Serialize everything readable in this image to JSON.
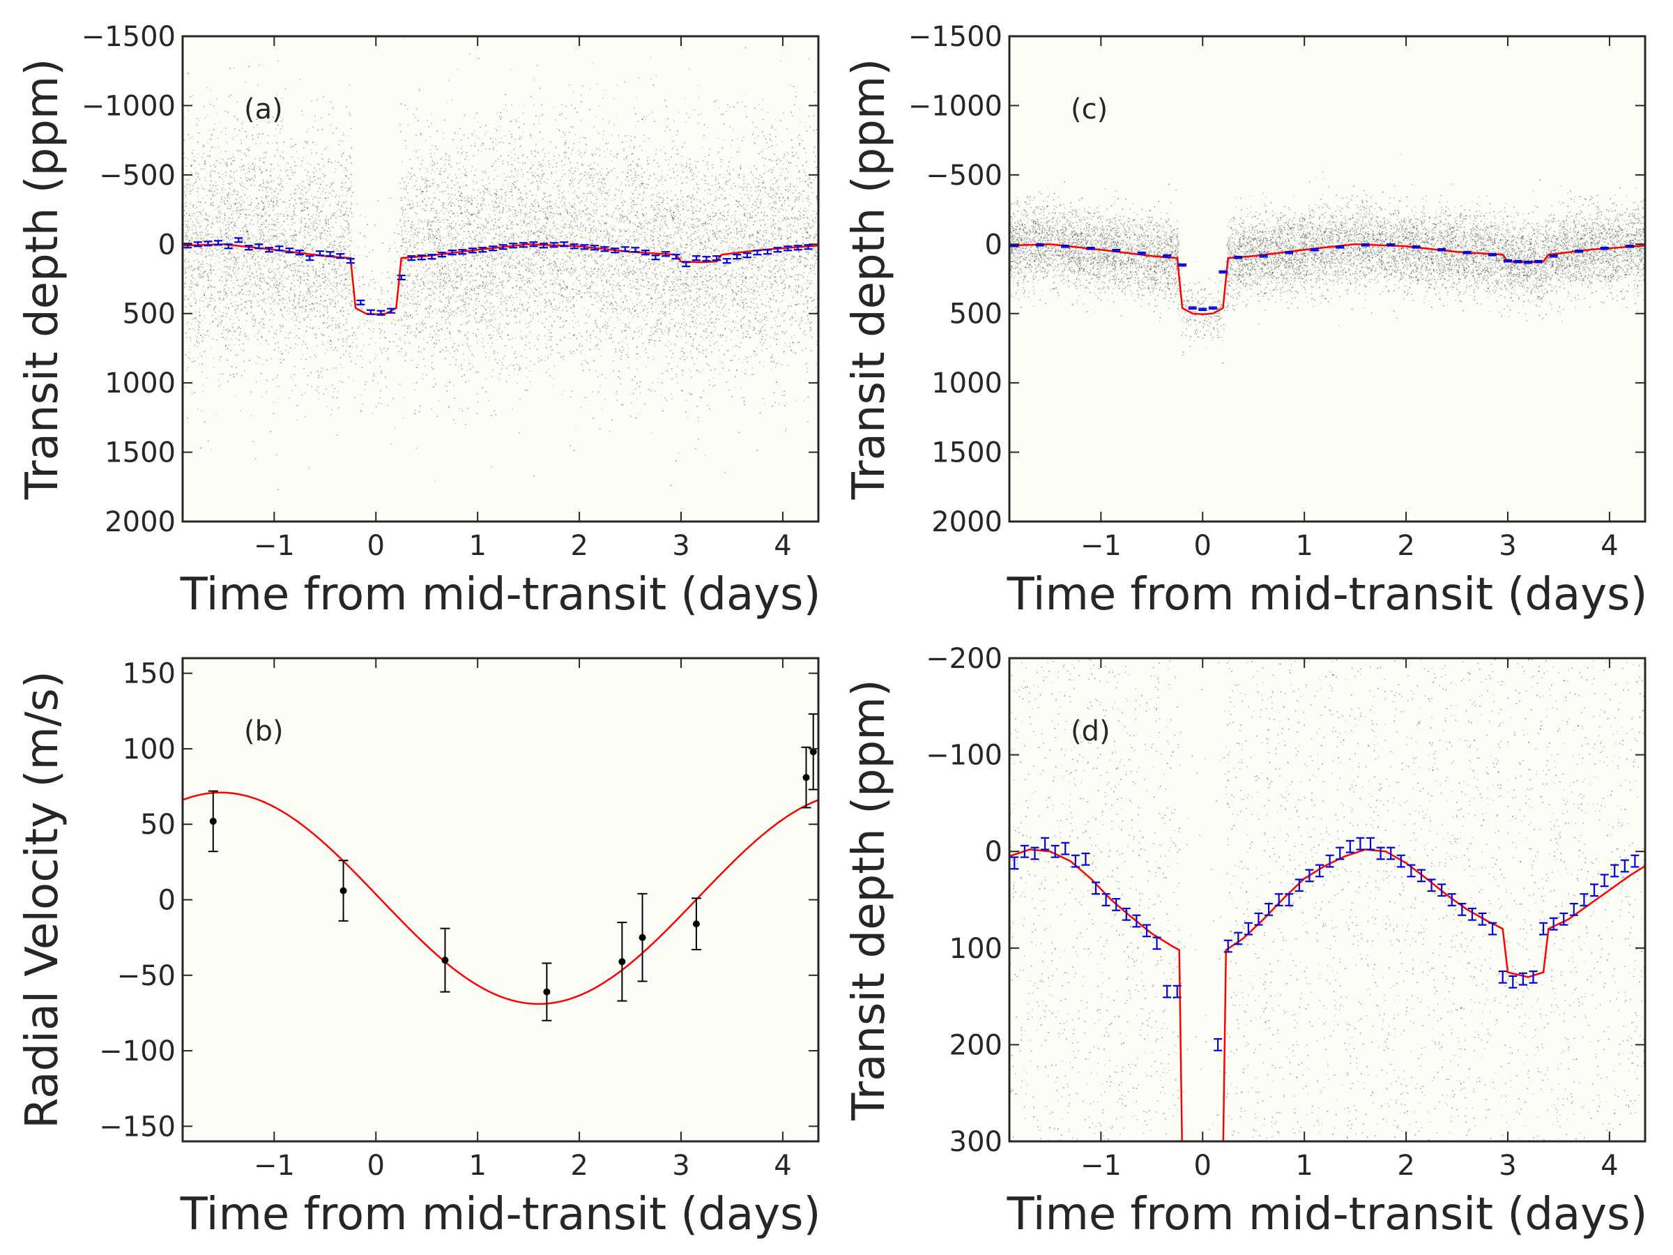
{
  "colors": {
    "plot_background": "#fdfdf8",
    "model_line": "#ff0000",
    "binned_points": "#0000dd",
    "raw_points": "#333333",
    "rv_points": "#000000",
    "frame": "#262626"
  },
  "chart_data": [
    {
      "type": "scatter",
      "panel": "(a)",
      "xlabel": "Time from mid-transit (days)",
      "ylabel": "Transit depth (ppm)",
      "xlim": [
        -1.9,
        4.35
      ],
      "ylim": [
        2000,
        -1500
      ],
      "y_inverted": true,
      "xticks": [
        -1,
        0,
        1,
        2,
        3,
        4
      ],
      "xtick_labels": [
        "−1",
        "0",
        "1",
        "2",
        "3",
        "4"
      ],
      "yticks": [
        -1500,
        -1000,
        -500,
        0,
        500,
        1000,
        1500,
        2000
      ],
      "ytick_labels": [
        "−1500",
        "−1000",
        "−500",
        "0",
        "500",
        "1000",
        "1500",
        "2000"
      ],
      "raw_scatter": {
        "description": "dense raw photometry cloud",
        "center_ppm": 0,
        "spread_ppm": 450,
        "transit_depth_ppm": 500
      },
      "model": {
        "x": [
          -1.9,
          -1.5,
          -1.0,
          -0.5,
          -0.25,
          -0.2,
          -0.1,
          0.0,
          0.1,
          0.2,
          0.25,
          0.5,
          1.0,
          1.5,
          2.0,
          2.5,
          2.95,
          3.0,
          3.2,
          3.35,
          3.4,
          3.8,
          4.35
        ],
        "y": [
          10,
          0,
          40,
          85,
          100,
          460,
          500,
          505,
          500,
          460,
          100,
          85,
          40,
          0,
          15,
          55,
          75,
          125,
          130,
          125,
          75,
          40,
          10
        ]
      },
      "binned": {
        "x": [
          -1.85,
          -1.75,
          -1.65,
          -1.55,
          -1.45,
          -1.35,
          -1.25,
          -1.15,
          -1.05,
          -0.95,
          -0.85,
          -0.75,
          -0.65,
          -0.55,
          -0.45,
          -0.35,
          -0.25,
          -0.15,
          -0.05,
          0.05,
          0.15,
          0.25,
          0.35,
          0.45,
          0.55,
          0.65,
          0.75,
          0.85,
          0.95,
          1.05,
          1.15,
          1.25,
          1.35,
          1.45,
          1.55,
          1.65,
          1.75,
          1.85,
          1.95,
          2.05,
          2.15,
          2.25,
          2.35,
          2.45,
          2.55,
          2.65,
          2.75,
          2.85,
          2.95,
          3.05,
          3.15,
          3.25,
          3.35,
          3.45,
          3.55,
          3.65,
          3.75,
          3.85,
          3.95,
          4.05,
          4.15,
          4.25
        ],
        "y": [
          10,
          0,
          -5,
          -10,
          15,
          -30,
          25,
          15,
          40,
          30,
          45,
          60,
          100,
          65,
          70,
          85,
          120,
          420,
          490,
          495,
          480,
          240,
          100,
          95,
          90,
          75,
          60,
          55,
          45,
          40,
          30,
          20,
          10,
          5,
          0,
          10,
          5,
          0,
          15,
          20,
          25,
          35,
          45,
          35,
          40,
          60,
          95,
          70,
          90,
          145,
          100,
          105,
          100,
          120,
          90,
          80,
          60,
          55,
          40,
          30,
          25,
          20
        ],
        "yerr": [
          15,
          15,
          15,
          15,
          15,
          15,
          15,
          15,
          15,
          15,
          15,
          15,
          15,
          15,
          15,
          15,
          15,
          15,
          15,
          15,
          15,
          15,
          15,
          15,
          15,
          15,
          15,
          15,
          15,
          15,
          15,
          15,
          15,
          15,
          15,
          15,
          15,
          15,
          15,
          15,
          15,
          15,
          15,
          15,
          15,
          15,
          15,
          15,
          15,
          15,
          15,
          15,
          15,
          15,
          15,
          15,
          15,
          15,
          15,
          15,
          15,
          15
        ]
      }
    },
    {
      "type": "scatter",
      "panel": "(c)",
      "xlabel": "Time from mid-transit (days)",
      "ylabel": "Transit depth (ppm)",
      "xlim": [
        -1.9,
        4.35
      ],
      "ylim": [
        2000,
        -1500
      ],
      "y_inverted": true,
      "xticks": [
        -1,
        0,
        1,
        2,
        3,
        4
      ],
      "xtick_labels": [
        "−1",
        "0",
        "1",
        "2",
        "3",
        "4"
      ],
      "yticks": [
        -1500,
        -1000,
        -500,
        0,
        500,
        1000,
        1500,
        2000
      ],
      "ytick_labels": [
        "−1500",
        "−1000",
        "−500",
        "0",
        "500",
        "1000",
        "1500",
        "2000"
      ],
      "raw_scatter": {
        "description": "raw photometry cloud",
        "center_ppm": 0,
        "spread_ppm": 150,
        "transit_depth_ppm": 500
      },
      "model": {
        "x": [
          -1.9,
          -1.5,
          -1.0,
          -0.5,
          -0.25,
          -0.2,
          -0.1,
          0.0,
          0.1,
          0.2,
          0.25,
          0.5,
          1.0,
          1.5,
          2.0,
          2.5,
          2.95,
          3.0,
          3.2,
          3.35,
          3.4,
          3.8,
          4.35
        ],
        "y": [
          10,
          0,
          40,
          85,
          100,
          460,
          500,
          505,
          500,
          460,
          100,
          85,
          40,
          0,
          15,
          55,
          75,
          125,
          130,
          125,
          75,
          40,
          10
        ]
      },
      "binned": {
        "x": [
          -1.85,
          -1.6,
          -1.35,
          -1.1,
          -0.85,
          -0.6,
          -0.35,
          -0.2,
          -0.1,
          0.0,
          0.1,
          0.2,
          0.35,
          0.6,
          0.85,
          1.1,
          1.35,
          1.6,
          1.85,
          2.1,
          2.35,
          2.6,
          2.85,
          3.0,
          3.1,
          3.2,
          3.3,
          3.45,
          3.7,
          3.95,
          4.2
        ],
        "y": [
          10,
          5,
          15,
          30,
          45,
          65,
          85,
          150,
          460,
          470,
          460,
          200,
          95,
          85,
          60,
          40,
          20,
          5,
          5,
          20,
          40,
          60,
          75,
          120,
          125,
          130,
          125,
          85,
          50,
          30,
          15
        ],
        "yerr": [
          6,
          6,
          6,
          6,
          6,
          6,
          6,
          6,
          6,
          6,
          6,
          6,
          6,
          6,
          6,
          6,
          6,
          6,
          6,
          6,
          6,
          6,
          6,
          6,
          6,
          6,
          6,
          6,
          6,
          6,
          6
        ]
      }
    },
    {
      "type": "scatter",
      "panel": "(b)",
      "xlabel": "Time from mid-transit (days)",
      "ylabel": "Radial Velocity (m/s)",
      "xlim": [
        -1.9,
        4.35
      ],
      "ylim": [
        -160,
        160
      ],
      "y_inverted": false,
      "xticks": [
        -1,
        0,
        1,
        2,
        3,
        4
      ],
      "xtick_labels": [
        "−1",
        "0",
        "1",
        "2",
        "3",
        "4"
      ],
      "yticks": [
        -150,
        -100,
        -50,
        0,
        50,
        100,
        150
      ],
      "ytick_labels": [
        "−150",
        "−100",
        "−50",
        "0",
        "50",
        "100",
        "150"
      ],
      "model": {
        "function": "sine",
        "amplitude": 70,
        "offset": 1,
        "min_at_x": 1.6,
        "period": 6.25
      },
      "points": {
        "x": [
          -1.6,
          -0.32,
          0.68,
          1.68,
          2.42,
          2.62,
          3.15,
          4.23,
          4.3
        ],
        "y": [
          52,
          6,
          -40,
          -61,
          -41,
          -25,
          -16,
          81,
          98
        ],
        "yerr": [
          20,
          20,
          21,
          19,
          26,
          29,
          17,
          20,
          25
        ]
      }
    },
    {
      "type": "scatter",
      "panel": "(d)",
      "xlabel": "Time from mid-transit (days)",
      "ylabel": "Transit depth (ppm)",
      "xlim": [
        -1.9,
        4.35
      ],
      "ylim": [
        300,
        -200
      ],
      "y_inverted": true,
      "xticks": [
        -1,
        0,
        1,
        2,
        3,
        4
      ],
      "xtick_labels": [
        "−1",
        "0",
        "1",
        "2",
        "3",
        "4"
      ],
      "yticks": [
        -200,
        -100,
        0,
        100,
        200,
        300
      ],
      "ytick_labels": [
        "−200",
        "−100",
        "0",
        "100",
        "200",
        "300"
      ],
      "raw_scatter": {
        "description": "raw photometry cloud (zoom)",
        "center_ppm": 0,
        "spread_ppm": 450
      },
      "model": {
        "x": [
          -1.9,
          -1.7,
          -1.5,
          -1.3,
          -1.1,
          -0.9,
          -0.7,
          -0.5,
          -0.3,
          -0.23,
          -0.2,
          -0.18,
          0.18,
          0.2,
          0.23,
          0.4,
          0.6,
          0.8,
          1.0,
          1.2,
          1.4,
          1.6,
          1.8,
          2.0,
          2.2,
          2.4,
          2.6,
          2.8,
          2.95,
          3.0,
          3.2,
          3.35,
          3.4,
          3.6,
          3.8,
          4.0,
          4.2,
          4.35
        ],
        "y": [
          5,
          -2,
          0,
          10,
          28,
          50,
          68,
          85,
          98,
          102,
          320,
          330,
          330,
          320,
          102,
          90,
          70,
          48,
          28,
          15,
          5,
          -2,
          0,
          12,
          28,
          45,
          60,
          72,
          80,
          125,
          130,
          125,
          80,
          70,
          55,
          40,
          25,
          15
        ]
      },
      "binned": {
        "x": [
          -1.85,
          -1.75,
          -1.65,
          -1.55,
          -1.45,
          -1.35,
          -1.25,
          -1.15,
          -1.05,
          -0.95,
          -0.85,
          -0.75,
          -0.65,
          -0.55,
          -0.45,
          -0.35,
          -0.25,
          0.15,
          0.25,
          0.35,
          0.45,
          0.55,
          0.65,
          0.75,
          0.85,
          0.95,
          1.05,
          1.15,
          1.25,
          1.35,
          1.45,
          1.55,
          1.65,
          1.75,
          1.85,
          1.95,
          2.05,
          2.15,
          2.25,
          2.35,
          2.45,
          2.55,
          2.65,
          2.75,
          2.85,
          2.95,
          3.05,
          3.15,
          3.25,
          3.35,
          3.45,
          3.55,
          3.65,
          3.75,
          3.85,
          3.95,
          4.05,
          4.15,
          4.25
        ],
        "y": [
          12,
          0,
          2,
          -8,
          0,
          -3,
          10,
          8,
          38,
          50,
          55,
          65,
          72,
          82,
          95,
          145,
          145,
          200,
          98,
          90,
          80,
          70,
          60,
          50,
          50,
          35,
          25,
          20,
          10,
          2,
          -5,
          -8,
          -8,
          2,
          2,
          10,
          20,
          25,
          35,
          40,
          50,
          60,
          65,
          70,
          80,
          130,
          135,
          132,
          130,
          80,
          75,
          70,
          60,
          50,
          40,
          30,
          20,
          15,
          10
        ],
        "yerr": [
          6,
          6,
          6,
          6,
          6,
          6,
          6,
          6,
          6,
          6,
          6,
          6,
          6,
          6,
          6,
          6,
          6,
          6,
          6,
          6,
          6,
          6,
          6,
          6,
          6,
          6,
          6,
          6,
          6,
          6,
          6,
          6,
          6,
          6,
          6,
          6,
          6,
          6,
          6,
          6,
          6,
          6,
          6,
          6,
          6,
          6,
          6,
          6,
          6,
          6,
          6,
          6,
          6,
          6,
          6,
          6,
          6,
          6,
          6
        ]
      }
    }
  ]
}
